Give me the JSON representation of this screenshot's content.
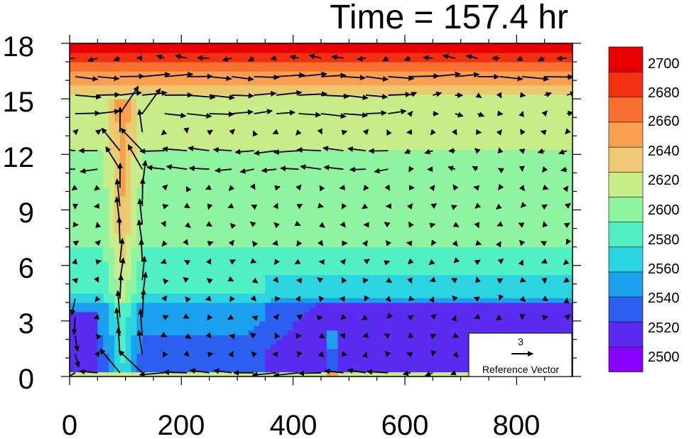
{
  "chart_data": {
    "type": "heatmap",
    "title": "Time = 157.4 hr",
    "xlabel": "",
    "ylabel": "",
    "xlim": [
      0,
      900
    ],
    "ylim": [
      0,
      18
    ],
    "x_ticks": [
      "0",
      "200",
      "400",
      "600",
      "800"
    ],
    "y_ticks": [
      "0",
      "3",
      "6",
      "9",
      "12",
      "15",
      "18"
    ],
    "colorbar": {
      "levels": [
        "2500",
        "2520",
        "2540",
        "2560",
        "2580",
        "2600",
        "2620",
        "2640",
        "2660",
        "2680",
        "2700"
      ],
      "colors": [
        "#8a00ff",
        "#5a2cf0",
        "#2c5ef0",
        "#1aa0ee",
        "#2ad4e0",
        "#50f0c4",
        "#8ef4a0",
        "#c8ec88",
        "#ecc870",
        "#f8a050",
        "#f87030",
        "#f03010",
        "#e80000"
      ]
    },
    "reference_vector": {
      "value": "3",
      "label": "Reference Vector"
    },
    "field_description": {
      "surface_band": {
        "y": [
          0,
          0.3
        ],
        "value": 2610
      },
      "lowest_layer": {
        "y": [
          0.3,
          4
        ],
        "x": [
          350,
          900
        ],
        "value": 2505
      },
      "mid_layer": {
        "y": [
          4,
          8
        ],
        "value": 2540
      },
      "upper_layer": {
        "y": [
          8,
          15
        ],
        "value": 2595
      },
      "top_gradient": {
        "y": [
          15,
          18
        ],
        "value_range": [
          2620,
          2710
        ]
      },
      "updraft_column_x": 90
    }
  }
}
